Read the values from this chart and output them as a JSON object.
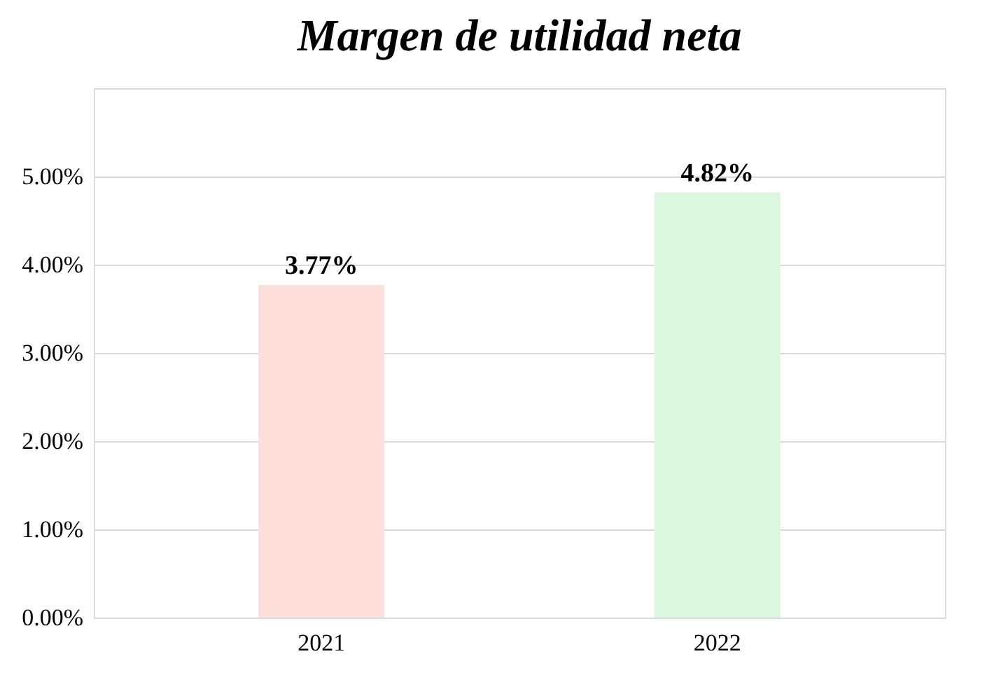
{
  "chart_data": {
    "type": "bar",
    "title": "Margen de utilidad neta",
    "categories": [
      "2021",
      "2022"
    ],
    "values": [
      3.77,
      4.82
    ],
    "colors": [
      "#fde0dc",
      "#dcf7e0"
    ],
    "value_labels": [
      "3.77%",
      "4.82%"
    ],
    "ylim": [
      0,
      6
    ],
    "yticks": [
      {
        "value": 0,
        "label": "0.00%"
      },
      {
        "value": 1,
        "label": "1.00%"
      },
      {
        "value": 2,
        "label": "2.00%"
      },
      {
        "value": 3,
        "label": "3.00%"
      },
      {
        "value": 4,
        "label": "4.00%"
      },
      {
        "value": 5,
        "label": "5.00%"
      },
      {
        "value": 6,
        "label": null
      }
    ],
    "grid": "y",
    "legend": false
  }
}
